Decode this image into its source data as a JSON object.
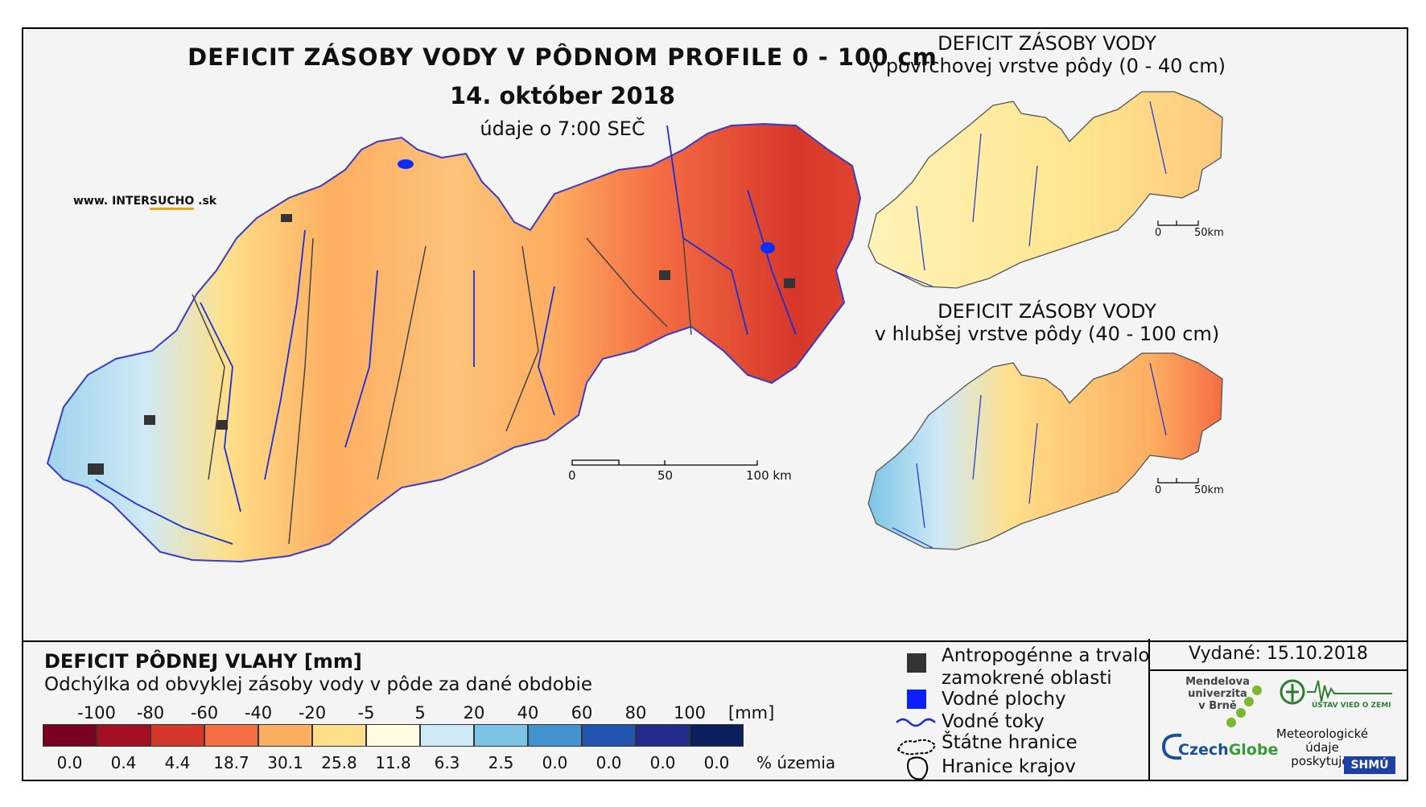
{
  "map": {
    "title_main": "DEFICIT ZÁSOBY VODY V PÔDNOM PROFILE 0 - 100 cm",
    "date": "14. október 2018",
    "time": "údaje o 7:00 SEČ",
    "website_prefix": "www. INTER",
    "website_highlight": "SUCHO",
    "website_suffix": " .sk",
    "scale_labels": [
      "0",
      "50",
      "100 km"
    ]
  },
  "insets": [
    {
      "title_line1": "DEFICIT ZÁSOBY VODY",
      "title_line2": "v povrchovej vrstve pôdy (0 - 40 cm)",
      "scale_labels": [
        "0",
        "50km"
      ]
    },
    {
      "title_line1": "DEFICIT ZÁSOBY VODY",
      "title_line2": "v hlubšej vrstve pôdy (40 - 100 cm)",
      "scale_labels": [
        "0",
        "50km"
      ]
    }
  ],
  "legend": {
    "title": "DEFICIT PÔDNEJ VLAHY [mm]",
    "subtitle": "Odchýlka od obvyklej zásoby vody v pôde za dané obdobie",
    "ticks": [
      "-100",
      "-80",
      "-60",
      "-40",
      "-20",
      "-5",
      "5",
      "20",
      "40",
      "60",
      "80",
      "100"
    ],
    "unit": "[mm]",
    "colors": [
      "#7a0020",
      "#a50f23",
      "#d7372a",
      "#f46d43",
      "#fdae61",
      "#fee08b",
      "#fffbe0",
      "#cfe9f6",
      "#7cc4e6",
      "#4292d0",
      "#2155b0",
      "#232c8c",
      "#0b1f5c"
    ],
    "percentages": [
      "0.0",
      "0.4",
      "4.4",
      "18.7",
      "30.1",
      "25.8",
      "11.8",
      "6.3",
      "2.5",
      "0.0",
      "0.0",
      "0.0",
      "0.0"
    ],
    "pct_label": "% územia"
  },
  "symbols": {
    "anthropogenic_line1": "Antropogénne a trvalo",
    "anthropogenic_line2": "zamokrené oblasti",
    "water_bodies": "Vodné plochy",
    "rivers": "Vodné toky",
    "state_border": "Štátne hranice",
    "region_border": "Hranice krajov"
  },
  "footer": {
    "issued": "Vydané: 15.10.2018",
    "mendel_line1": "Mendelova",
    "mendel_line2": "univerzita",
    "mendel_line3": "v Brně",
    "czechglobe_a": "Czech",
    "czechglobe_b": "Globe",
    "uvoz": "ÚSTAV VIED O ZEMI",
    "meteo_line1": "Meteorologické",
    "meteo_line2": "údaje",
    "meteo_line3": "poskytuje:",
    "shmu": "SHMÚ"
  }
}
